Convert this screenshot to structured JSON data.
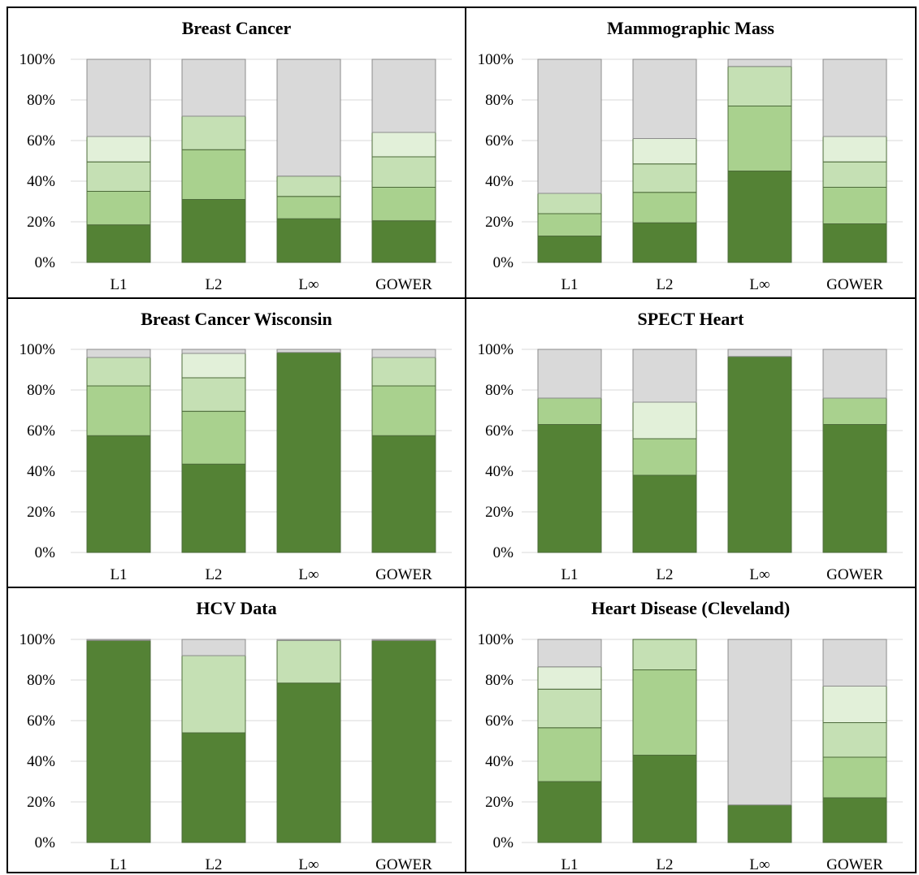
{
  "colors": {
    "level1": "#548235",
    "level2": "#a9d18e",
    "level3": "#c5e0b4",
    "level4": "#e2f0d9",
    "rest": "#d9d9d9",
    "grid": "#d9d9d9",
    "bar_outline": "#4d6b3a"
  },
  "chart_data": [
    {
      "type": "bar",
      "title": "Breast Cancer",
      "categories": [
        "L1",
        "L2",
        "L∞",
        "GOWER"
      ],
      "ylim": [
        0,
        100
      ],
      "yticks": [
        "0%",
        "20%",
        "40%",
        "60%",
        "80%",
        "100%"
      ],
      "stacked": true,
      "grid": true,
      "series": [
        {
          "values": [
            18.5,
            31,
            21.5,
            20.5
          ]
        },
        {
          "values": [
            16.5,
            24.5,
            11,
            16.5
          ]
        },
        {
          "values": [
            14.5,
            16.5,
            10,
            15
          ]
        },
        {
          "values": [
            12.5,
            0,
            0,
            12
          ]
        },
        {
          "values": [
            38,
            28,
            57.5,
            36
          ]
        }
      ]
    },
    {
      "type": "bar",
      "title": "Mammographic Mass",
      "categories": [
        "L1",
        "L2",
        "L∞",
        "GOWER"
      ],
      "ylim": [
        0,
        100
      ],
      "yticks": [
        "0%",
        "20%",
        "40%",
        "60%",
        "80%",
        "100%"
      ],
      "stacked": true,
      "grid": true,
      "series": [
        {
          "values": [
            13,
            19.5,
            45,
            19
          ]
        },
        {
          "values": [
            11,
            15,
            32,
            18
          ]
        },
        {
          "values": [
            10,
            14,
            19.5,
            12.5
          ]
        },
        {
          "values": [
            0,
            12.5,
            0,
            12.5
          ]
        },
        {
          "values": [
            66,
            39,
            3.5,
            38
          ]
        }
      ]
    },
    {
      "type": "bar",
      "title": "Breast Cancer Wisconsin",
      "categories": [
        "L1",
        "L2",
        "L∞",
        "GOWER"
      ],
      "ylim": [
        0,
        100
      ],
      "yticks": [
        "0%",
        "20%",
        "40%",
        "60%",
        "80%",
        "100%"
      ],
      "stacked": true,
      "grid": true,
      "series": [
        {
          "values": [
            57.5,
            43.5,
            98.5,
            57.5
          ]
        },
        {
          "values": [
            24.5,
            26,
            0,
            24.5
          ]
        },
        {
          "values": [
            14,
            16.5,
            0,
            14
          ]
        },
        {
          "values": [
            0,
            12,
            0,
            0
          ]
        },
        {
          "values": [
            4,
            2,
            1.5,
            4
          ]
        }
      ]
    },
    {
      "type": "bar",
      "title": "SPECT Heart",
      "categories": [
        "L1",
        "L2",
        "L∞",
        "GOWER"
      ],
      "ylim": [
        0,
        100
      ],
      "yticks": [
        "0%",
        "20%",
        "40%",
        "60%",
        "80%",
        "100%"
      ],
      "stacked": true,
      "grid": true,
      "series": [
        {
          "values": [
            63,
            38,
            96.5,
            63
          ]
        },
        {
          "values": [
            13,
            18,
            0,
            13
          ]
        },
        {
          "values": [
            0,
            0,
            0,
            0
          ]
        },
        {
          "values": [
            0,
            18,
            0,
            0
          ]
        },
        {
          "values": [
            24,
            26,
            3.5,
            24
          ]
        }
      ]
    },
    {
      "type": "bar",
      "title": "HCV Data",
      "categories": [
        "L1",
        "L2",
        "L∞",
        "GOWER"
      ],
      "ylim": [
        0,
        100
      ],
      "yticks": [
        "0%",
        "20%",
        "40%",
        "60%",
        "80%",
        "100%"
      ],
      "stacked": true,
      "grid": true,
      "series": [
        {
          "values": [
            99.5,
            54,
            78.5,
            99.5
          ]
        },
        {
          "values": [
            0,
            0,
            0,
            0
          ]
        },
        {
          "values": [
            0,
            38,
            21,
            0
          ]
        },
        {
          "values": [
            0,
            0,
            0,
            0
          ]
        },
        {
          "values": [
            0.5,
            8,
            0.5,
            0.5
          ]
        }
      ]
    },
    {
      "type": "bar",
      "title": "Heart Disease (Cleveland)",
      "categories": [
        "L1",
        "L2",
        "L∞",
        "GOWER"
      ],
      "ylim": [
        0,
        100
      ],
      "yticks": [
        "0%",
        "20%",
        "40%",
        "60%",
        "80%",
        "100%"
      ],
      "stacked": true,
      "grid": true,
      "series": [
        {
          "values": [
            30,
            43,
            18.5,
            22
          ]
        },
        {
          "values": [
            26.5,
            42,
            0,
            20
          ]
        },
        {
          "values": [
            19,
            15,
            0,
            17
          ]
        },
        {
          "values": [
            11,
            0,
            0,
            18
          ]
        },
        {
          "values": [
            13.5,
            0,
            81.5,
            23
          ]
        }
      ]
    }
  ]
}
